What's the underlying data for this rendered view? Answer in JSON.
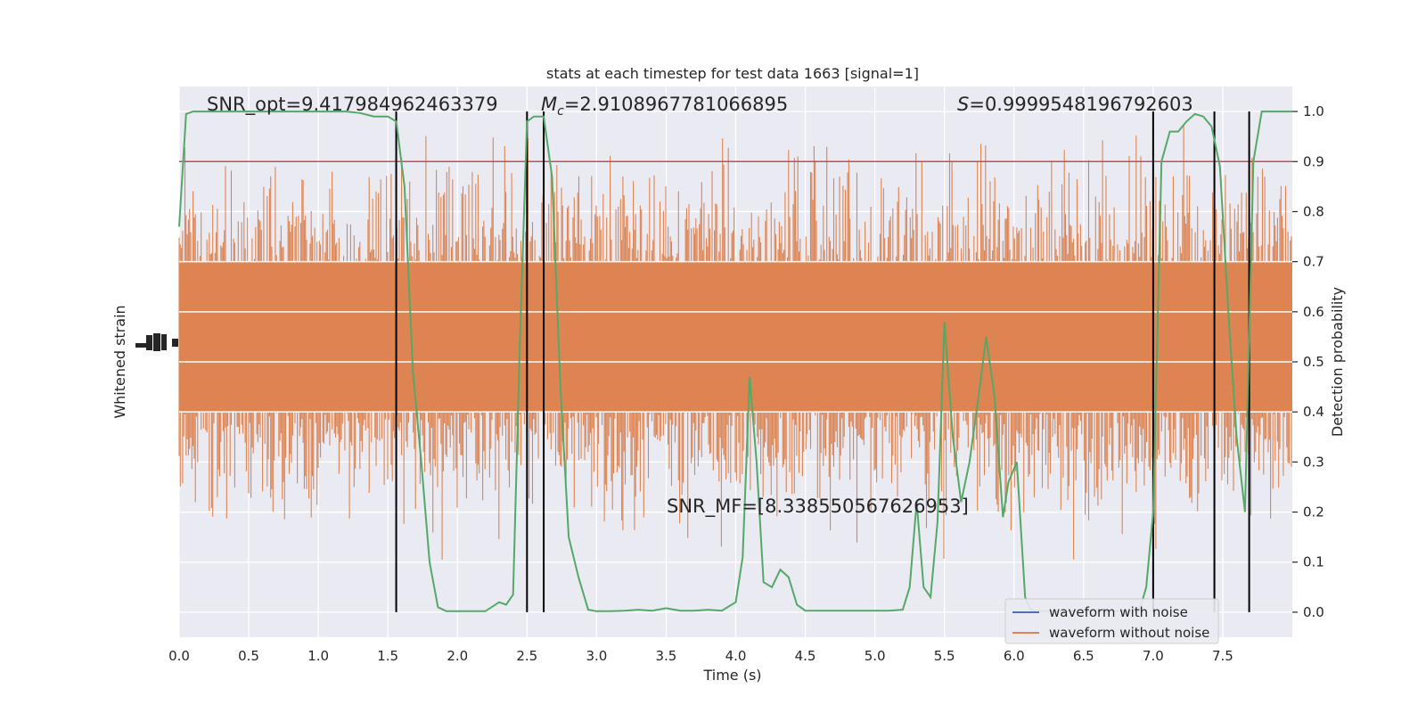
{
  "chart_data": {
    "type": "line",
    "title": "stats at each timestep for test data 1663 [signal=1]",
    "xlabel": "Time (s)",
    "ylabel_left": "Whitened strain",
    "ylabel_right": "Detection probability",
    "xlim": [
      0,
      8
    ],
    "ylim_right": [
      -0.05,
      1.05
    ],
    "x_ticks": [
      0.0,
      0.5,
      1.0,
      1.5,
      2.0,
      2.5,
      3.0,
      3.5,
      4.0,
      4.5,
      5.0,
      5.5,
      6.0,
      6.5,
      7.0,
      7.5
    ],
    "x_tick_labels": [
      "0.0",
      "0.5",
      "1.0",
      "1.5",
      "2.0",
      "2.5",
      "3.0",
      "3.5",
      "4.0",
      "4.5",
      "5.0",
      "5.5",
      "6.0",
      "6.5",
      "7.0",
      "7.5"
    ],
    "y_right_ticks": [
      0.0,
      0.1,
      0.2,
      0.3,
      0.4,
      0.5,
      0.6,
      0.7,
      0.8,
      0.9,
      1.0
    ],
    "y_right_tick_labels": [
      "0.0",
      "0.1",
      "0.2",
      "0.3",
      "0.4",
      "0.5",
      "0.6",
      "0.7",
      "0.8",
      "0.9",
      "1.0"
    ],
    "threshold": 0.9,
    "vlines": [
      1.56,
      2.5,
      2.62,
      7.0,
      7.44,
      7.69
    ],
    "grid": true,
    "legend_position": "lower-right",
    "series": [
      {
        "name": "waveform with noise",
        "color": "#4c72b0",
        "values": []
      },
      {
        "name": "waveform without noise",
        "color": "#dd8452",
        "values": []
      },
      {
        "color": "#55a868",
        "x": [
          0.0,
          0.05,
          0.1,
          0.15,
          0.3,
          0.5,
          0.7,
          0.9,
          1.0,
          1.2,
          1.3,
          1.4,
          1.5,
          1.56,
          1.62,
          1.68,
          1.74,
          1.8,
          1.86,
          1.92,
          2.0,
          2.1,
          2.2,
          2.3,
          2.35,
          2.4,
          2.45,
          2.5,
          2.55,
          2.62,
          2.68,
          2.74,
          2.8,
          2.87,
          2.94,
          3.0,
          3.1,
          3.2,
          3.3,
          3.4,
          3.5,
          3.6,
          3.7,
          3.8,
          3.9,
          4.0,
          4.05,
          4.1,
          4.15,
          4.2,
          4.26,
          4.32,
          4.38,
          4.44,
          4.5,
          4.6,
          4.7,
          4.8,
          5.0,
          5.1,
          5.2,
          5.25,
          5.3,
          5.35,
          5.4,
          5.45,
          5.5,
          5.56,
          5.62,
          5.68,
          5.74,
          5.8,
          5.86,
          5.92,
          5.96,
          6.02,
          6.08,
          6.12,
          6.16,
          6.2,
          6.26,
          6.9,
          6.95,
          7.0,
          7.06,
          7.12,
          7.18,
          7.24,
          7.3,
          7.36,
          7.42,
          7.48,
          7.54,
          7.6,
          7.66,
          7.72,
          7.78,
          7.84,
          7.9,
          7.95,
          8.0
        ],
        "values": [
          0.77,
          0.995,
          1.0,
          1.0,
          1.0,
          1.0,
          1.0,
          1.0,
          1.0,
          1.0,
          0.997,
          0.99,
          0.99,
          0.98,
          0.85,
          0.48,
          0.3,
          0.1,
          0.01,
          0.002,
          0.002,
          0.002,
          0.002,
          0.02,
          0.015,
          0.035,
          0.55,
          0.98,
          0.99,
          0.99,
          0.87,
          0.45,
          0.15,
          0.07,
          0.005,
          0.002,
          0.002,
          0.003,
          0.005,
          0.003,
          0.008,
          0.003,
          0.003,
          0.005,
          0.003,
          0.02,
          0.11,
          0.47,
          0.3,
          0.06,
          0.05,
          0.085,
          0.07,
          0.015,
          0.003,
          0.003,
          0.003,
          0.003,
          0.003,
          0.003,
          0.005,
          0.05,
          0.22,
          0.05,
          0.03,
          0.18,
          0.58,
          0.35,
          0.22,
          0.3,
          0.42,
          0.55,
          0.43,
          0.19,
          0.26,
          0.3,
          0.03,
          0.005,
          0.003,
          0.002,
          0.002,
          0.002,
          0.05,
          0.2,
          0.9,
          0.96,
          0.96,
          0.98,
          0.995,
          0.99,
          0.97,
          0.89,
          0.6,
          0.35,
          0.2,
          0.9,
          1.0,
          1.0,
          1.0,
          1.0,
          1.0
        ]
      }
    ],
    "annotations": {
      "snr_opt": "SNR_opt=9.417984962463379",
      "mc_symbol": "M",
      "mc_sub": "c",
      "mc_value": "=2.9108967781066895",
      "s_symbol": "S",
      "s_value": "=0.9999548196792603",
      "snr_mf": "SNR_MF=[8.338550567626953]"
    }
  }
}
